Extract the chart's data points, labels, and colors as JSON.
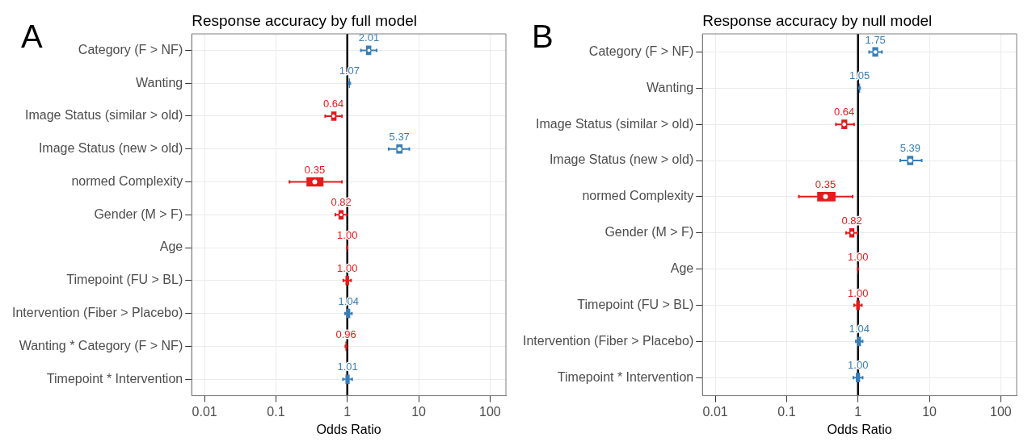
{
  "chart_data": [
    {
      "type": "box",
      "orientation": "horizontal",
      "title": "Response accuracy by full model",
      "xlabel": "Odds Ratio",
      "annotations": [
        "A"
      ],
      "log": "x",
      "grid": true,
      "xlim": [
        0.0066,
        167
      ],
      "xticks": [
        0.01,
        0.1,
        1,
        10,
        100
      ],
      "ref_lines": [
        {
          "axis": "x",
          "value": 1,
          "color": "#000000"
        }
      ],
      "categories": [
        "Category (F > NF)",
        "Wanting",
        "Image Status (similar > old)",
        "Image Status (new > old)",
        "normed Complexity",
        "Gender (M > F)",
        "Age",
        "Timepoint (FU > BL)",
        "Intervention (Fiber > Placebo)",
        "Wanting * Category (F > NF)",
        "Timepoint * Intervention"
      ],
      "series": [
        {
          "colors": [
            "#377eb8",
            "#377eb8",
            "#e41a1c",
            "#377eb8",
            "#e41a1c",
            "#e41a1c",
            "#e41a1c",
            "#e41a1c",
            "#377eb8",
            "#e41a1c",
            "#377eb8"
          ],
          "value_labels": [
            "2.01",
            "1.07",
            "0.64",
            "5.37",
            "0.35",
            "0.82",
            "1.00",
            "1.00",
            "1.04",
            "0.96",
            "1.01"
          ],
          "boxes": [
            {
              "low": 1.55,
              "q1": 1.85,
              "median": 2.01,
              "q3": 2.15,
              "high": 2.58
            },
            {
              "low": 1.04,
              "q1": 1.06,
              "median": 1.07,
              "q3": 1.08,
              "high": 1.1
            },
            {
              "low": 0.49,
              "q1": 0.6,
              "median": 0.64,
              "q3": 0.7,
              "high": 0.84
            },
            {
              "low": 3.8,
              "q1": 4.9,
              "median": 5.37,
              "q3": 5.9,
              "high": 7.4
            },
            {
              "low": 0.155,
              "q1": 0.27,
              "median": 0.35,
              "q3": 0.46,
              "high": 0.84
            },
            {
              "low": 0.68,
              "q1": 0.76,
              "median": 0.82,
              "q3": 0.88,
              "high": 0.98
            },
            {
              "low": 0.99,
              "q1": 1.0,
              "median": 1.0,
              "q3": 1.0,
              "high": 1.01
            },
            {
              "low": 0.88,
              "q1": 0.95,
              "median": 1.0,
              "q3": 1.05,
              "high": 1.13
            },
            {
              "low": 0.93,
              "q1": 0.99,
              "median": 1.04,
              "q3": 1.09,
              "high": 1.16
            },
            {
              "low": 0.94,
              "q1": 0.95,
              "median": 0.96,
              "q3": 0.97,
              "high": 0.98
            },
            {
              "low": 0.87,
              "q1": 0.95,
              "median": 1.01,
              "q3": 1.07,
              "high": 1.17
            }
          ]
        }
      ]
    },
    {
      "type": "box",
      "orientation": "horizontal",
      "title": "Response accuracy by null model",
      "xlabel": "Odds Ratio",
      "annotations": [
        "B"
      ],
      "log": "x",
      "grid": true,
      "xlim": [
        0.0066,
        167
      ],
      "xticks": [
        0.01,
        0.1,
        1,
        10,
        100
      ],
      "ref_lines": [
        {
          "axis": "x",
          "value": 1,
          "color": "#000000"
        }
      ],
      "categories": [
        "Category (F > NF)",
        "Wanting",
        "Image Status (similar > old)",
        "Image Status (new > old)",
        "normed Complexity",
        "Gender (M > F)",
        "Age",
        "Timepoint (FU > BL)",
        "Intervention (Fiber > Placebo)",
        "Timepoint * Intervention"
      ],
      "series": [
        {
          "colors": [
            "#377eb8",
            "#377eb8",
            "#e41a1c",
            "#377eb8",
            "#e41a1c",
            "#e41a1c",
            "#e41a1c",
            "#e41a1c",
            "#377eb8",
            "#377eb8"
          ],
          "value_labels": [
            "1.75",
            "1.05",
            "0.64",
            "5.39",
            "0.35",
            "0.82",
            "1.00",
            "1.00",
            "1.04",
            "1.00"
          ],
          "boxes": [
            {
              "low": 1.43,
              "q1": 1.6,
              "median": 1.75,
              "q3": 1.9,
              "high": 2.16
            },
            {
              "low": 1.03,
              "q1": 1.04,
              "median": 1.05,
              "q3": 1.06,
              "high": 1.07
            },
            {
              "low": 0.49,
              "q1": 0.59,
              "median": 0.64,
              "q3": 0.7,
              "high": 0.88
            },
            {
              "low": 3.9,
              "q1": 4.9,
              "median": 5.39,
              "q3": 5.9,
              "high": 7.8
            },
            {
              "low": 0.148,
              "q1": 0.27,
              "median": 0.35,
              "q3": 0.48,
              "high": 0.84
            },
            {
              "low": 0.68,
              "q1": 0.76,
              "median": 0.82,
              "q3": 0.88,
              "high": 0.98
            },
            {
              "low": 0.99,
              "q1": 1.0,
              "median": 1.0,
              "q3": 1.0,
              "high": 1.01
            },
            {
              "low": 0.88,
              "q1": 0.95,
              "median": 1.0,
              "q3": 1.05,
              "high": 1.13
            },
            {
              "low": 0.93,
              "q1": 0.99,
              "median": 1.04,
              "q3": 1.09,
              "high": 1.16
            },
            {
              "low": 0.86,
              "q1": 0.94,
              "median": 1.0,
              "q3": 1.06,
              "high": 1.16
            }
          ]
        }
      ]
    }
  ]
}
